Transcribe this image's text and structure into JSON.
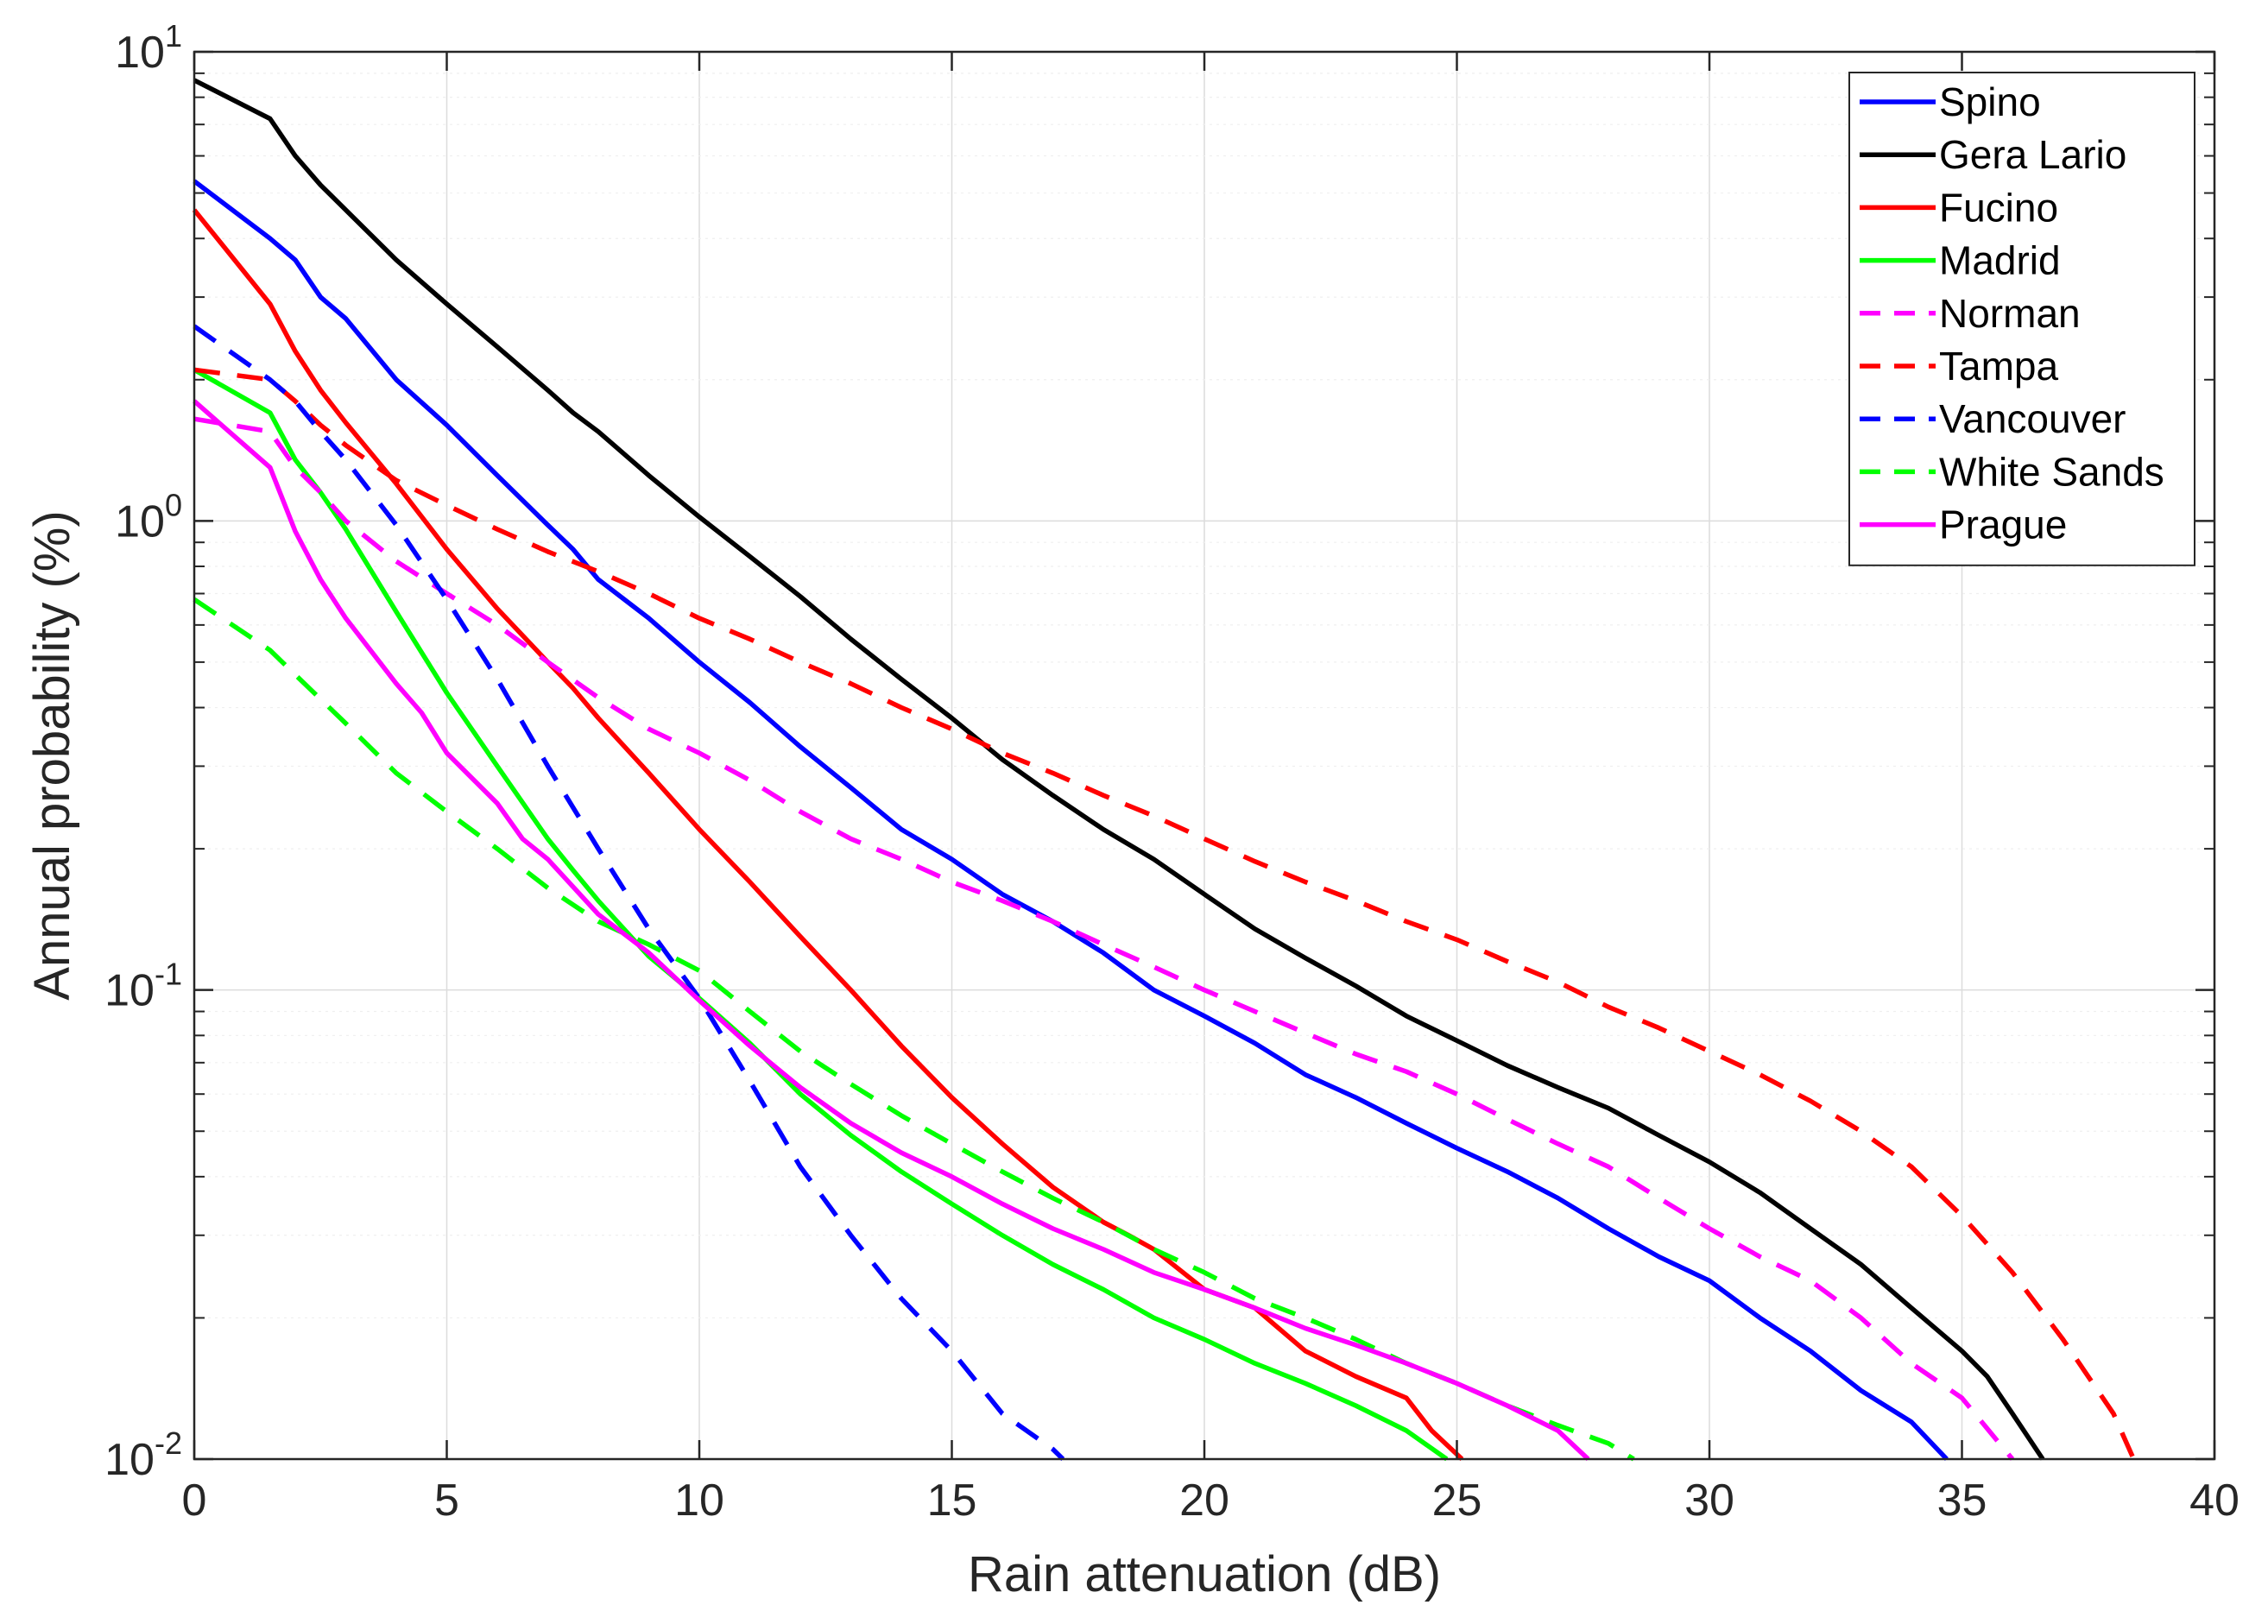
{
  "chart_data": {
    "type": "line",
    "title": "",
    "xlabel": "Rain attenuation (dB)",
    "ylabel": "Annual probability (%)",
    "xlim": [
      0,
      40
    ],
    "ylim": [
      0.01,
      10
    ],
    "yscale": "log",
    "grid": true,
    "legend_position": "top-right",
    "x_ticks": [
      0,
      5,
      10,
      15,
      20,
      25,
      30,
      35,
      40
    ],
    "x_tick_labels": [
      "0",
      "5",
      "10",
      "15",
      "20",
      "25",
      "30",
      "35",
      "40"
    ],
    "y_ticks": [
      {
        "value": 10,
        "base": "10",
        "exp": "1"
      },
      {
        "value": 1,
        "base": "10",
        "exp": "0"
      },
      {
        "value": 0.1,
        "base": "10",
        "exp": "-1"
      },
      {
        "value": 0.01,
        "base": "10",
        "exp": "-2"
      }
    ],
    "series": [
      {
        "name": "Spino",
        "color": "#0000ff",
        "dash": "solid",
        "x": [
          0,
          1.5,
          2,
          2.5,
          3,
          4,
          5,
          6,
          7,
          7.5,
          8,
          9,
          10,
          11,
          12,
          13,
          14,
          15,
          16,
          17,
          18,
          19,
          20,
          21,
          22,
          23,
          24,
          25,
          26,
          27,
          28,
          29,
          30,
          31,
          32,
          33,
          34,
          34.7
        ],
        "y": [
          5.3,
          4.0,
          3.6,
          3.0,
          2.7,
          2.0,
          1.6,
          1.25,
          0.98,
          0.87,
          0.75,
          0.62,
          0.5,
          0.41,
          0.33,
          0.27,
          0.22,
          0.19,
          0.16,
          0.14,
          0.12,
          0.1,
          0.088,
          0.077,
          0.066,
          0.059,
          0.052,
          0.046,
          0.041,
          0.036,
          0.031,
          0.027,
          0.024,
          0.02,
          0.017,
          0.014,
          0.012,
          0.01
        ]
      },
      {
        "name": "Gera Lario",
        "color": "#000000",
        "dash": "solid",
        "x": [
          0,
          1.5,
          2,
          2.5,
          3,
          4,
          5,
          6,
          7,
          7.5,
          8,
          9,
          10,
          11,
          12,
          13,
          14,
          15,
          16,
          17,
          18,
          19,
          20,
          21,
          22,
          23,
          24,
          25,
          26,
          27,
          28,
          29,
          30,
          31,
          32,
          33,
          34,
          35,
          35.5,
          36,
          36.6
        ],
        "y": [
          8.7,
          7.2,
          6.0,
          5.2,
          4.6,
          3.6,
          2.9,
          2.35,
          1.9,
          1.7,
          1.55,
          1.25,
          1.02,
          0.84,
          0.69,
          0.56,
          0.46,
          0.38,
          0.31,
          0.26,
          0.22,
          0.19,
          0.16,
          0.135,
          0.117,
          0.102,
          0.088,
          0.078,
          0.069,
          0.062,
          0.056,
          0.049,
          0.043,
          0.037,
          0.031,
          0.026,
          0.021,
          0.017,
          0.015,
          0.0125,
          0.01
        ]
      },
      {
        "name": "Fucino",
        "color": "#ff0000",
        "dash": "solid",
        "x": [
          0,
          1.5,
          2,
          2.5,
          3,
          4,
          5,
          6,
          7,
          7.5,
          8,
          9,
          10,
          11,
          12,
          13,
          14,
          15,
          16,
          17,
          18,
          18.5,
          19,
          20,
          21,
          22,
          23,
          24,
          24.5,
          25.1
        ],
        "y": [
          4.6,
          2.9,
          2.3,
          1.9,
          1.62,
          1.2,
          0.87,
          0.65,
          0.5,
          0.44,
          0.38,
          0.29,
          0.22,
          0.17,
          0.13,
          0.1,
          0.076,
          0.059,
          0.047,
          0.038,
          0.032,
          0.03,
          0.028,
          0.023,
          0.021,
          0.017,
          0.015,
          0.0135,
          0.0115,
          0.01
        ]
      },
      {
        "name": "Madrid",
        "color": "#00ff00",
        "dash": "solid",
        "x": [
          0,
          1.5,
          2,
          2.5,
          3,
          4,
          5,
          6,
          7,
          7.5,
          8,
          9,
          10,
          11,
          12,
          13,
          14,
          15,
          16,
          17,
          18,
          19,
          20,
          21,
          22,
          23,
          24,
          24.8
        ],
        "y": [
          2.1,
          1.7,
          1.35,
          1.15,
          0.96,
          0.64,
          0.43,
          0.3,
          0.21,
          0.18,
          0.155,
          0.118,
          0.096,
          0.077,
          0.06,
          0.049,
          0.041,
          0.035,
          0.03,
          0.026,
          0.023,
          0.02,
          0.018,
          0.016,
          0.0145,
          0.013,
          0.0115,
          0.01
        ]
      },
      {
        "name": "Norman",
        "color": "#ff00ff",
        "dash": "dashed",
        "x": [
          0,
          1.5,
          2,
          2.5,
          3,
          4,
          5,
          6,
          7,
          8,
          9,
          10,
          11,
          12,
          13,
          14,
          15,
          16,
          17,
          18,
          19,
          20,
          21,
          22,
          23,
          24,
          25,
          26,
          27,
          28,
          29,
          30,
          31,
          32,
          33,
          34,
          35,
          36
        ],
        "y": [
          1.65,
          1.55,
          1.3,
          1.15,
          1.0,
          0.82,
          0.7,
          0.6,
          0.5,
          0.42,
          0.36,
          0.32,
          0.28,
          0.24,
          0.21,
          0.19,
          0.17,
          0.155,
          0.14,
          0.125,
          0.112,
          0.1,
          0.09,
          0.081,
          0.073,
          0.067,
          0.06,
          0.053,
          0.047,
          0.042,
          0.036,
          0.031,
          0.027,
          0.024,
          0.02,
          0.016,
          0.0135,
          0.01
        ]
      },
      {
        "name": "Tampa",
        "color": "#ff0000",
        "dash": "dashed",
        "x": [
          0,
          1.5,
          2,
          2.5,
          3,
          4,
          5,
          6,
          7,
          8,
          9,
          10,
          11,
          12,
          13,
          14,
          15,
          16,
          17,
          18,
          19,
          20,
          21,
          22,
          23,
          24,
          25,
          26,
          27,
          28,
          29,
          30,
          31,
          32,
          33,
          34,
          35,
          36,
          37,
          38,
          38.4
        ],
        "y": [
          2.1,
          2.0,
          1.8,
          1.6,
          1.45,
          1.22,
          1.08,
          0.96,
          0.86,
          0.78,
          0.7,
          0.62,
          0.56,
          0.5,
          0.45,
          0.4,
          0.36,
          0.32,
          0.29,
          0.26,
          0.235,
          0.21,
          0.188,
          0.17,
          0.155,
          0.14,
          0.128,
          0.115,
          0.104,
          0.092,
          0.083,
          0.074,
          0.066,
          0.058,
          0.05,
          0.042,
          0.033,
          0.025,
          0.018,
          0.0125,
          0.01
        ]
      },
      {
        "name": "Vancouver",
        "color": "#0000ff",
        "dash": "dashed",
        "x": [
          0,
          1.5,
          2,
          2.5,
          3,
          4,
          5,
          6,
          7,
          8,
          9,
          10,
          11,
          12,
          13,
          14,
          15,
          16,
          17,
          17.2
        ],
        "y": [
          2.6,
          2.0,
          1.8,
          1.55,
          1.35,
          0.98,
          0.68,
          0.46,
          0.3,
          0.2,
          0.135,
          0.096,
          0.064,
          0.042,
          0.03,
          0.022,
          0.017,
          0.0125,
          0.0105,
          0.01
        ]
      },
      {
        "name": "White Sands",
        "color": "#00ff00",
        "dash": "dashed",
        "x": [
          0,
          1.5,
          2,
          3,
          4,
          5,
          6,
          7,
          8,
          9,
          10,
          11,
          12,
          13,
          14,
          15,
          16,
          17,
          18,
          19,
          20,
          21,
          22,
          23,
          24,
          25,
          26,
          27,
          28,
          28.5
        ],
        "y": [
          0.68,
          0.53,
          0.47,
          0.37,
          0.29,
          0.24,
          0.2,
          0.165,
          0.14,
          0.125,
          0.11,
          0.09,
          0.074,
          0.063,
          0.054,
          0.047,
          0.041,
          0.036,
          0.032,
          0.028,
          0.025,
          0.022,
          0.02,
          0.018,
          0.016,
          0.0145,
          0.013,
          0.0118,
          0.0108,
          0.01
        ]
      },
      {
        "name": "Prague",
        "color": "#ff00ff",
        "dash": "solid",
        "x": [
          0,
          1.5,
          2,
          2.5,
          3,
          4,
          4.5,
          5,
          6,
          6.5,
          7,
          8,
          9,
          10,
          11,
          12,
          13,
          14,
          15,
          16,
          17,
          18,
          19,
          20,
          21,
          22,
          23,
          24,
          25,
          26,
          27,
          27.6
        ],
        "y": [
          1.8,
          1.3,
          0.95,
          0.75,
          0.62,
          0.45,
          0.39,
          0.32,
          0.25,
          0.21,
          0.19,
          0.145,
          0.12,
          0.095,
          0.076,
          0.062,
          0.052,
          0.045,
          0.04,
          0.035,
          0.031,
          0.028,
          0.025,
          0.023,
          0.021,
          0.019,
          0.0175,
          0.016,
          0.0145,
          0.013,
          0.0115,
          0.01
        ]
      }
    ]
  }
}
